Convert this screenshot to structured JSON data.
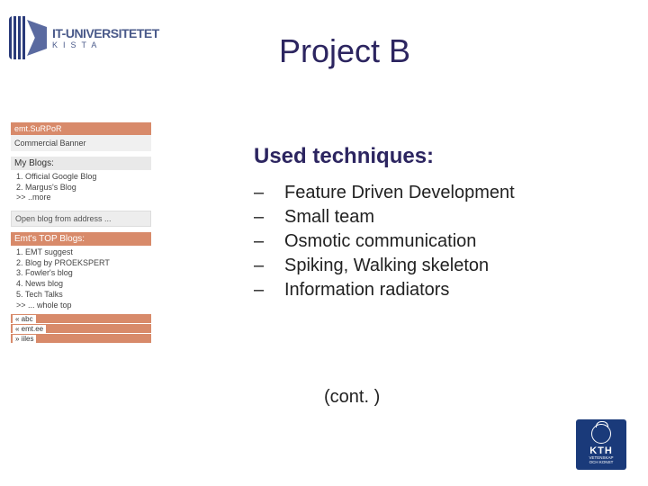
{
  "logo": {
    "line1": "IT-UNIVERSITETET",
    "line2": "KISTA"
  },
  "title": "Project B",
  "sidebar": {
    "topbar_label": "emt.SuRPoR",
    "banner_label": "Commercial Banner",
    "myblogs_head": "My Blogs:",
    "myblogs_items": [
      "1. Official Google Blog",
      "2. Margus's Blog",
      ">> ..more"
    ],
    "openblog_label": "Open blog from address ...",
    "topblogs_head": "Emt's TOP Blogs:",
    "topblogs_items": [
      "1. EMT suggest",
      "2. Blog by PROEKSPERT",
      "3. Fowler's blog",
      "4. News blog",
      "5. Tech Talks",
      ">> ... whole top"
    ],
    "footer_tags": [
      "« abc",
      "« emt.ee",
      "» iiles"
    ]
  },
  "subhead": "Used techniques:",
  "bullets": [
    "Feature Driven Development",
    "Small team",
    "Osmotic communication",
    "Spiking, Walking skeleton",
    "Information radiators"
  ],
  "cont": "(cont. )",
  "kth": {
    "name": "KTH",
    "sub1": "VETENSKAP",
    "sub2": "OCH KONST"
  },
  "colors": {
    "title": "#2c2560",
    "accent_bar": "#d88a6a",
    "kth_bg": "#1a3a7a"
  }
}
